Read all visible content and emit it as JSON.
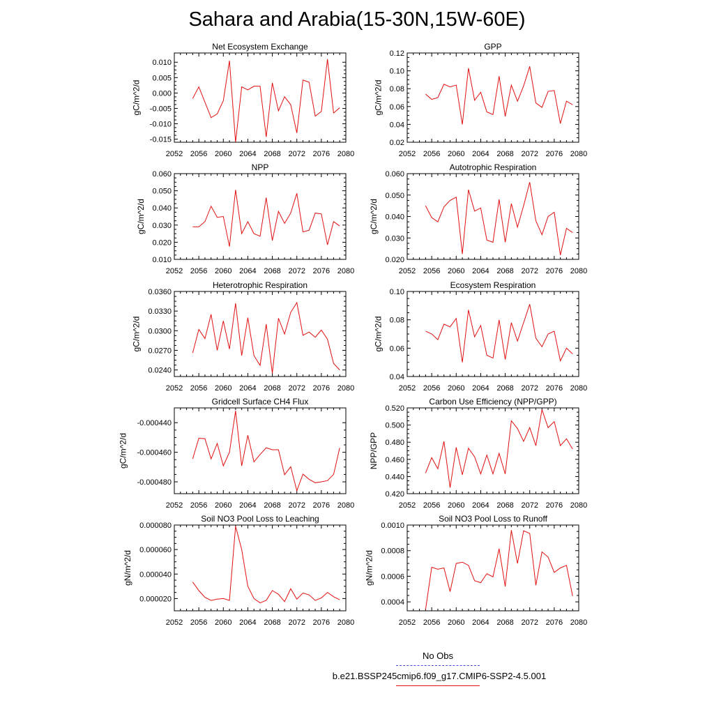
{
  "title": "Sahara and Arabia(15-30N,15W-60E)",
  "legend": {
    "obs_label": "No Obs",
    "model_label": "b.e21.BSSP245cmip6.f09_g17.CMIP6-SSP2-4.5.001",
    "obs_color": "#4a4ad8",
    "model_color": "#e01010"
  },
  "chart_data": [
    {
      "type": "line",
      "title": "Net Ecosystem Exchange",
      "ylabel": "gC/m^2/d",
      "xlim": [
        2052,
        2080
      ],
      "ylim": [
        -0.016,
        0.013
      ],
      "xticks": [
        "2052",
        "2056",
        "2060",
        "2064",
        "2068",
        "2072",
        "2076",
        "2080"
      ],
      "yticks": [
        "-0.015",
        "-0.010",
        "-0.005",
        "0.000",
        "0.005",
        "0.010"
      ],
      "ytick_values": [
        -0.015,
        -0.01,
        -0.005,
        0.0,
        0.005,
        0.01
      ],
      "x": [
        2055,
        2056,
        2057,
        2058,
        2059,
        2060,
        2061,
        2062,
        2063,
        2064,
        2065,
        2066,
        2067,
        2068,
        2069,
        2070,
        2071,
        2072,
        2073,
        2074,
        2075,
        2076,
        2077,
        2078,
        2079
      ],
      "series": [
        {
          "values": [
            -0.0018,
            0.002,
            -0.003,
            -0.008,
            -0.0068,
            -0.0025,
            0.0105,
            -0.016,
            0.002,
            0.001,
            0.0022,
            0.0022,
            -0.0143,
            0.0033,
            -0.0058,
            -0.0012,
            -0.0038,
            -0.013,
            0.0042,
            0.0035,
            -0.0075,
            -0.006,
            0.011,
            -0.0065,
            -0.0048
          ]
        }
      ]
    },
    {
      "type": "line",
      "title": "GPP",
      "ylabel": "gC/m^2/d",
      "xlim": [
        2052,
        2080
      ],
      "ylim": [
        0.02,
        0.12
      ],
      "xticks": [
        "2052",
        "2056",
        "2060",
        "2064",
        "2068",
        "2072",
        "2076",
        "2080"
      ],
      "yticks": [
        "0.02",
        "0.04",
        "0.06",
        "0.08",
        "0.10",
        "0.12"
      ],
      "ytick_values": [
        0.02,
        0.04,
        0.06,
        0.08,
        0.1,
        0.12
      ],
      "x": [
        2055,
        2056,
        2057,
        2058,
        2059,
        2060,
        2061,
        2062,
        2063,
        2064,
        2065,
        2066,
        2067,
        2068,
        2069,
        2070,
        2071,
        2072,
        2073,
        2074,
        2075,
        2076,
        2077,
        2078,
        2079
      ],
      "series": [
        {
          "values": [
            0.074,
            0.068,
            0.07,
            0.085,
            0.082,
            0.084,
            0.04,
            0.103,
            0.067,
            0.076,
            0.054,
            0.051,
            0.094,
            0.049,
            0.084,
            0.066,
            0.083,
            0.105,
            0.064,
            0.059,
            0.077,
            0.078,
            0.041,
            0.066,
            0.062
          ]
        }
      ]
    },
    {
      "type": "line",
      "title": "NPP",
      "ylabel": "gC/m^2/d",
      "xlim": [
        2052,
        2080
      ],
      "ylim": [
        0.01,
        0.06
      ],
      "xticks": [
        "2052",
        "2056",
        "2060",
        "2064",
        "2068",
        "2072",
        "2076",
        "2080"
      ],
      "yticks": [
        "0.010",
        "0.020",
        "0.030",
        "0.040",
        "0.050",
        "0.060"
      ],
      "ytick_values": [
        0.01,
        0.02,
        0.03,
        0.04,
        0.05,
        0.06
      ],
      "x": [
        2055,
        2056,
        2057,
        2058,
        2059,
        2060,
        2061,
        2062,
        2063,
        2064,
        2065,
        2066,
        2067,
        2068,
        2069,
        2070,
        2071,
        2072,
        2073,
        2074,
        2075,
        2076,
        2077,
        2078,
        2079
      ],
      "series": [
        {
          "values": [
            0.029,
            0.029,
            0.032,
            0.041,
            0.0345,
            0.035,
            0.0175,
            0.0505,
            0.025,
            0.032,
            0.025,
            0.0235,
            0.046,
            0.021,
            0.038,
            0.031,
            0.037,
            0.0485,
            0.026,
            0.027,
            0.037,
            0.0365,
            0.0185,
            0.032,
            0.0295
          ]
        }
      ]
    },
    {
      "type": "line",
      "title": "Autotrophic Respiration",
      "ylabel": "gC/m^2/d",
      "xlim": [
        2052,
        2080
      ],
      "ylim": [
        0.02,
        0.06
      ],
      "xticks": [
        "2052",
        "2056",
        "2060",
        "2064",
        "2068",
        "2072",
        "2076",
        "2080"
      ],
      "yticks": [
        "0.020",
        "0.030",
        "0.040",
        "0.050",
        "0.060"
      ],
      "ytick_values": [
        0.02,
        0.03,
        0.04,
        0.05,
        0.06
      ],
      "x": [
        2055,
        2056,
        2057,
        2058,
        2059,
        2060,
        2061,
        2062,
        2063,
        2064,
        2065,
        2066,
        2067,
        2068,
        2069,
        2070,
        2071,
        2072,
        2073,
        2074,
        2075,
        2076,
        2077,
        2078,
        2079
      ],
      "series": [
        {
          "values": [
            0.045,
            0.0395,
            0.0375,
            0.0445,
            0.0475,
            0.049,
            0.0225,
            0.0525,
            0.0425,
            0.044,
            0.029,
            0.028,
            0.048,
            0.028,
            0.046,
            0.035,
            0.045,
            0.056,
            0.038,
            0.0315,
            0.04,
            0.042,
            0.022,
            0.0345,
            0.0325
          ]
        }
      ]
    },
    {
      "type": "line",
      "title": "Heterotrophic Respiration",
      "ylabel": "gC/m^2/d",
      "xlim": [
        2052,
        2080
      ],
      "ylim": [
        0.023,
        0.036
      ],
      "xticks": [
        "2052",
        "2056",
        "2060",
        "2064",
        "2068",
        "2072",
        "2076",
        "2080"
      ],
      "yticks": [
        "0.0240",
        "0.0270",
        "0.0300",
        "0.0330",
        "0.0360"
      ],
      "ytick_values": [
        0.024,
        0.027,
        0.03,
        0.033,
        0.036
      ],
      "x": [
        2055,
        2056,
        2057,
        2058,
        2059,
        2060,
        2061,
        2062,
        2063,
        2064,
        2065,
        2066,
        2067,
        2068,
        2069,
        2070,
        2071,
        2072,
        2073,
        2074,
        2075,
        2076,
        2077,
        2078,
        2079
      ],
      "series": [
        {
          "values": [
            0.0266,
            0.0302,
            0.0288,
            0.0325,
            0.027,
            0.0315,
            0.0272,
            0.0342,
            0.0262,
            0.032,
            0.0262,
            0.0247,
            0.031,
            0.0235,
            0.0319,
            0.0295,
            0.0328,
            0.0343,
            0.0293,
            0.0298,
            0.029,
            0.0301,
            0.0287,
            0.025,
            0.024
          ]
        }
      ]
    },
    {
      "type": "line",
      "title": "Ecosystem Respiration",
      "ylabel": "gC/m^2/d",
      "xlim": [
        2052,
        2080
      ],
      "ylim": [
        0.04,
        0.1
      ],
      "xticks": [
        "2052",
        "2056",
        "2060",
        "2064",
        "2068",
        "2072",
        "2076",
        "2080"
      ],
      "yticks": [
        "0.04",
        "0.06",
        "0.08",
        "0.10"
      ],
      "ytick_values": [
        0.04,
        0.06,
        0.08,
        0.1
      ],
      "x": [
        2055,
        2056,
        2057,
        2058,
        2059,
        2060,
        2061,
        2062,
        2063,
        2064,
        2065,
        2066,
        2067,
        2068,
        2069,
        2070,
        2071,
        2072,
        2073,
        2074,
        2075,
        2076,
        2077,
        2078,
        2079
      ],
      "series": [
        {
          "values": [
            0.072,
            0.07,
            0.066,
            0.077,
            0.075,
            0.081,
            0.05,
            0.087,
            0.068,
            0.076,
            0.055,
            0.053,
            0.08,
            0.052,
            0.078,
            0.065,
            0.078,
            0.091,
            0.067,
            0.061,
            0.07,
            0.072,
            0.051,
            0.06,
            0.056
          ]
        }
      ]
    },
    {
      "type": "line",
      "title": "Gridcell Surface CH4 Flux",
      "ylabel": "gC/m^2/d",
      "xlim": [
        2052,
        2080
      ],
      "ylim": [
        -0.000488,
        -0.00043
      ],
      "xticks": [
        "2052",
        "2056",
        "2060",
        "2064",
        "2068",
        "2072",
        "2076",
        "2080"
      ],
      "yticks": [
        "-0.000480",
        "-0.000460",
        "-0.000440"
      ],
      "ytick_values": [
        -0.00048,
        -0.00046,
        -0.00044
      ],
      "x": [
        2055,
        2056,
        2057,
        2058,
        2059,
        2060,
        2061,
        2062,
        2063,
        2064,
        2065,
        2066,
        2067,
        2068,
        2069,
        2070,
        2071,
        2072,
        2073,
        2074,
        2075,
        2076,
        2077,
        2078,
        2079
      ],
      "series": [
        {
          "values": [
            -0.0004645,
            -0.0004505,
            -0.0004508,
            -0.0004645,
            -0.000454,
            -0.0004692,
            -0.00046,
            -0.000432,
            -0.0004692,
            -0.0004485,
            -0.0004665,
            -0.0004615,
            -0.000457,
            -0.0004583,
            -0.0004583,
            -0.0004752,
            -0.0004698,
            -0.000486,
            -0.0004748,
            -0.0004783,
            -0.0004806,
            -0.00048,
            -0.0004792,
            -0.000475,
            -0.000457
          ]
        }
      ]
    },
    {
      "type": "line",
      "title": "Carbon Use Efficiency (NPP/GPP)",
      "ylabel": "NPP/GPP",
      "xlim": [
        2052,
        2080
      ],
      "ylim": [
        0.42,
        0.52
      ],
      "xticks": [
        "2052",
        "2056",
        "2060",
        "2064",
        "2068",
        "2072",
        "2076",
        "2080"
      ],
      "yticks": [
        "0.420",
        "0.440",
        "0.460",
        "0.480",
        "0.500",
        "0.520"
      ],
      "ytick_values": [
        0.42,
        0.44,
        0.46,
        0.48,
        0.5,
        0.52
      ],
      "x": [
        2055,
        2056,
        2057,
        2058,
        2059,
        2060,
        2061,
        2062,
        2063,
        2064,
        2065,
        2066,
        2067,
        2068,
        2069,
        2070,
        2071,
        2072,
        2073,
        2074,
        2075,
        2076,
        2077,
        2078,
        2079
      ],
      "series": [
        {
          "values": [
            0.444,
            0.462,
            0.449,
            0.481,
            0.427,
            0.474,
            0.442,
            0.473,
            0.463,
            0.443,
            0.465,
            0.443,
            0.467,
            0.443,
            0.505,
            0.496,
            0.481,
            0.497,
            0.476,
            0.518,
            0.497,
            0.504,
            0.476,
            0.484,
            0.472
          ]
        }
      ]
    },
    {
      "type": "line",
      "title": "Soil NO3 Pool Loss to Leaching",
      "ylabel": "gN/m^2/d",
      "xlim": [
        2052,
        2080
      ],
      "ylim": [
        1e-05,
        8e-05
      ],
      "xticks": [
        "2052",
        "2056",
        "2060",
        "2064",
        "2068",
        "2072",
        "2076",
        "2080"
      ],
      "yticks": [
        "0.000020",
        "0.000040",
        "0.000060",
        "0.000080"
      ],
      "ytick_values": [
        2e-05,
        4e-05,
        6e-05,
        8e-05
      ],
      "x": [
        2055,
        2056,
        2057,
        2058,
        2059,
        2060,
        2061,
        2062,
        2063,
        2064,
        2065,
        2066,
        2067,
        2068,
        2069,
        2070,
        2071,
        2072,
        2073,
        2074,
        2075,
        2076,
        2077,
        2078,
        2079
      ],
      "series": [
        {
          "values": [
            3.35e-05,
            2.65e-05,
            2.1e-05,
            1.85e-05,
            1.95e-05,
            2e-05,
            1.85e-05,
            7.9e-05,
            6e-05,
            3e-05,
            2e-05,
            1.65e-05,
            1.85e-05,
            2.65e-05,
            2.35e-05,
            1.75e-05,
            2.8e-05,
            1.95e-05,
            2.45e-05,
            2.3e-05,
            1.85e-05,
            2.05e-05,
            2.5e-05,
            2.15e-05,
            1.9e-05
          ]
        }
      ]
    },
    {
      "type": "line",
      "title": "Soil NO3 Pool Loss to Runoff",
      "ylabel": "gN/m^2/d",
      "xlim": [
        2052,
        2080
      ],
      "ylim": [
        0.00033,
        0.001
      ],
      "xticks": [
        "2052",
        "2056",
        "2060",
        "2064",
        "2068",
        "2072",
        "2076",
        "2080"
      ],
      "yticks": [
        "0.0004",
        "0.0006",
        "0.0008",
        "0.0010"
      ],
      "ytick_values": [
        0.0004,
        0.0006,
        0.0008,
        0.001
      ],
      "x": [
        2055,
        2056,
        2057,
        2058,
        2059,
        2060,
        2061,
        2062,
        2063,
        2064,
        2065,
        2066,
        2067,
        2068,
        2069,
        2070,
        2071,
        2072,
        2073,
        2074,
        2075,
        2076,
        2077,
        2078,
        2079
      ],
      "series": [
        {
          "values": [
            0.00034,
            0.00067,
            0.000655,
            0.000665,
            0.00048,
            0.0007,
            0.00071,
            0.000685,
            0.000565,
            0.00055,
            0.00062,
            0.000595,
            0.000815,
            0.00052,
            0.00096,
            0.0007,
            0.000955,
            0.000935,
            0.00053,
            0.00079,
            0.00075,
            0.00063,
            0.000665,
            0.000685,
            0.000445
          ]
        }
      ]
    }
  ]
}
